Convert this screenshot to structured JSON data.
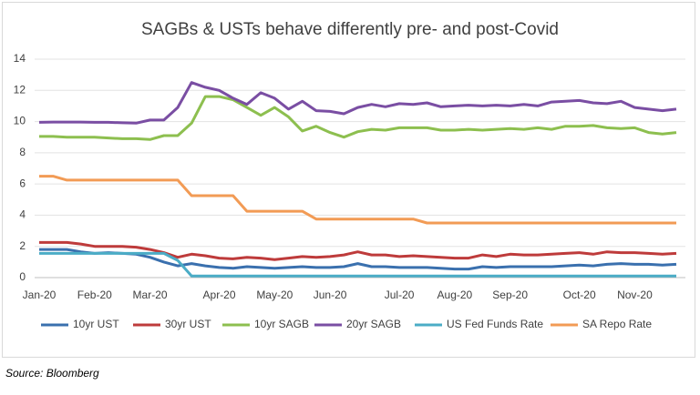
{
  "chart_data": {
    "type": "line",
    "title": "SAGBs & USTs behave differently pre- and post-Covid",
    "categories": [
      "Jan-20",
      null,
      null,
      null,
      "Feb-20",
      null,
      null,
      null,
      "Mar-20",
      null,
      null,
      null,
      null,
      "Apr-20",
      null,
      null,
      null,
      "May-20",
      null,
      null,
      null,
      "Jun-20",
      null,
      null,
      null,
      null,
      "Jul-20",
      null,
      null,
      null,
      "Aug-20",
      null,
      null,
      null,
      "Sep-20",
      null,
      null,
      null,
      null,
      "Oct-20",
      null,
      null,
      null,
      "Nov-20",
      null,
      null,
      null
    ],
    "ylim": [
      0,
      14
    ],
    "yticks": [
      0,
      2,
      4,
      6,
      8,
      10,
      12,
      14
    ],
    "grid": true,
    "legend": "bottom",
    "series": [
      {
        "name": "10yr UST",
        "color": "#3a70ae",
        "values": [
          1.8,
          1.8,
          1.8,
          1.65,
          1.55,
          1.6,
          1.55,
          1.5,
          1.3,
          1.0,
          0.75,
          0.9,
          0.75,
          0.65,
          0.6,
          0.7,
          0.65,
          0.6,
          0.65,
          0.7,
          0.65,
          0.65,
          0.7,
          0.9,
          0.7,
          0.7,
          0.65,
          0.65,
          0.65,
          0.6,
          0.55,
          0.55,
          0.7,
          0.65,
          0.7,
          0.7,
          0.7,
          0.7,
          0.75,
          0.8,
          0.75,
          0.85,
          0.9,
          0.85,
          0.85,
          0.8,
          0.85
        ]
      },
      {
        "name": "30yr UST",
        "color": "#be3b3b",
        "values": [
          2.25,
          2.25,
          2.25,
          2.15,
          2.0,
          2.0,
          2.0,
          1.95,
          1.8,
          1.6,
          1.3,
          1.5,
          1.4,
          1.25,
          1.2,
          1.3,
          1.25,
          1.15,
          1.25,
          1.35,
          1.3,
          1.35,
          1.45,
          1.65,
          1.45,
          1.45,
          1.35,
          1.4,
          1.35,
          1.3,
          1.25,
          1.25,
          1.45,
          1.35,
          1.5,
          1.45,
          1.45,
          1.5,
          1.55,
          1.6,
          1.5,
          1.65,
          1.6,
          1.6,
          1.55,
          1.5,
          1.55
        ]
      },
      {
        "name": "10yr SAGB",
        "color": "#8dbf4f",
        "values": [
          9.05,
          9.05,
          9.0,
          9.0,
          9.0,
          8.95,
          8.9,
          8.9,
          8.85,
          9.1,
          9.1,
          9.9,
          11.6,
          11.6,
          11.4,
          10.9,
          10.4,
          10.9,
          10.3,
          9.4,
          9.7,
          9.3,
          9.0,
          9.35,
          9.5,
          9.45,
          9.6,
          9.6,
          9.6,
          9.45,
          9.45,
          9.5,
          9.45,
          9.5,
          9.55,
          9.5,
          9.6,
          9.5,
          9.7,
          9.7,
          9.75,
          9.6,
          9.55,
          9.6,
          9.3,
          9.2,
          9.3
        ]
      },
      {
        "name": "20yr SAGB",
        "color": "#7a4ea3",
        "values": [
          9.95,
          9.97,
          9.97,
          9.97,
          9.95,
          9.95,
          9.92,
          9.9,
          10.1,
          10.1,
          10.9,
          12.5,
          12.2,
          12.0,
          11.5,
          11.1,
          11.85,
          11.5,
          10.8,
          11.3,
          10.7,
          10.65,
          10.5,
          10.9,
          11.1,
          10.95,
          11.15,
          11.1,
          11.2,
          10.95,
          11.0,
          11.05,
          11.0,
          11.05,
          11.0,
          11.1,
          11.0,
          11.25,
          11.3,
          11.35,
          11.2,
          11.15,
          11.3,
          10.9,
          10.8,
          10.7,
          10.8
        ]
      },
      {
        "name": "US Fed Funds Rate",
        "color": "#4bacc6",
        "values": [
          1.55,
          1.55,
          1.55,
          1.55,
          1.55,
          1.55,
          1.55,
          1.55,
          1.55,
          1.55,
          1.1,
          0.1,
          0.1,
          0.1,
          0.1,
          0.1,
          0.1,
          0.1,
          0.1,
          0.1,
          0.1,
          0.1,
          0.1,
          0.1,
          0.1,
          0.1,
          0.1,
          0.1,
          0.1,
          0.1,
          0.1,
          0.1,
          0.1,
          0.1,
          0.1,
          0.1,
          0.1,
          0.1,
          0.1,
          0.1,
          0.1,
          0.1,
          0.1,
          0.1,
          0.1,
          0.1,
          0.1
        ]
      },
      {
        "name": "SA Repo Rate",
        "color": "#f29b55",
        "values": [
          6.5,
          6.5,
          6.25,
          6.25,
          6.25,
          6.25,
          6.25,
          6.25,
          6.25,
          6.25,
          6.25,
          5.25,
          5.25,
          5.25,
          5.25,
          4.25,
          4.25,
          4.25,
          4.25,
          4.25,
          3.75,
          3.75,
          3.75,
          3.75,
          3.75,
          3.75,
          3.75,
          3.75,
          3.5,
          3.5,
          3.5,
          3.5,
          3.5,
          3.5,
          3.5,
          3.5,
          3.5,
          3.5,
          3.5,
          3.5,
          3.5,
          3.5,
          3.5,
          3.5,
          3.5,
          3.5,
          3.5
        ]
      }
    ]
  },
  "source": "Source: Bloomberg"
}
